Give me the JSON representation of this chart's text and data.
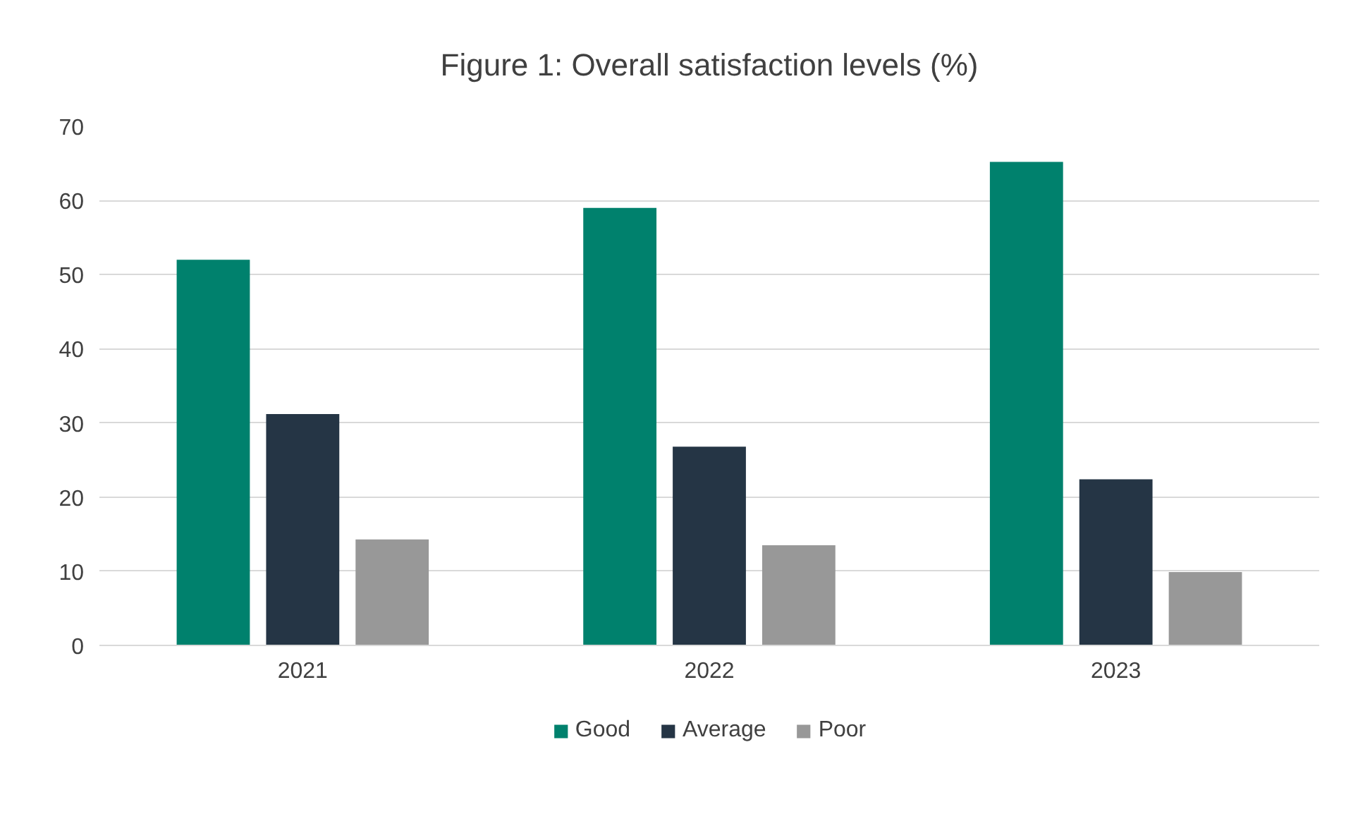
{
  "chart_data": {
    "type": "bar",
    "title": "Figure 1: Overall satisfaction levels (%)",
    "categories": [
      "2021",
      "2022",
      "2023"
    ],
    "series": [
      {
        "name": "Good",
        "color": "#00816d",
        "values": [
          52,
          59,
          65.2
        ]
      },
      {
        "name": "Average",
        "color": "#253545",
        "values": [
          31.2,
          26.8,
          22.4
        ]
      },
      {
        "name": "Poor",
        "color": "#989898",
        "values": [
          14.3,
          13.5,
          9.9
        ]
      }
    ],
    "ylim": [
      0,
      70
    ],
    "yticks": [
      0,
      10,
      20,
      30,
      40,
      50,
      60,
      70
    ],
    "grid": "y",
    "legend": "bottom"
  }
}
